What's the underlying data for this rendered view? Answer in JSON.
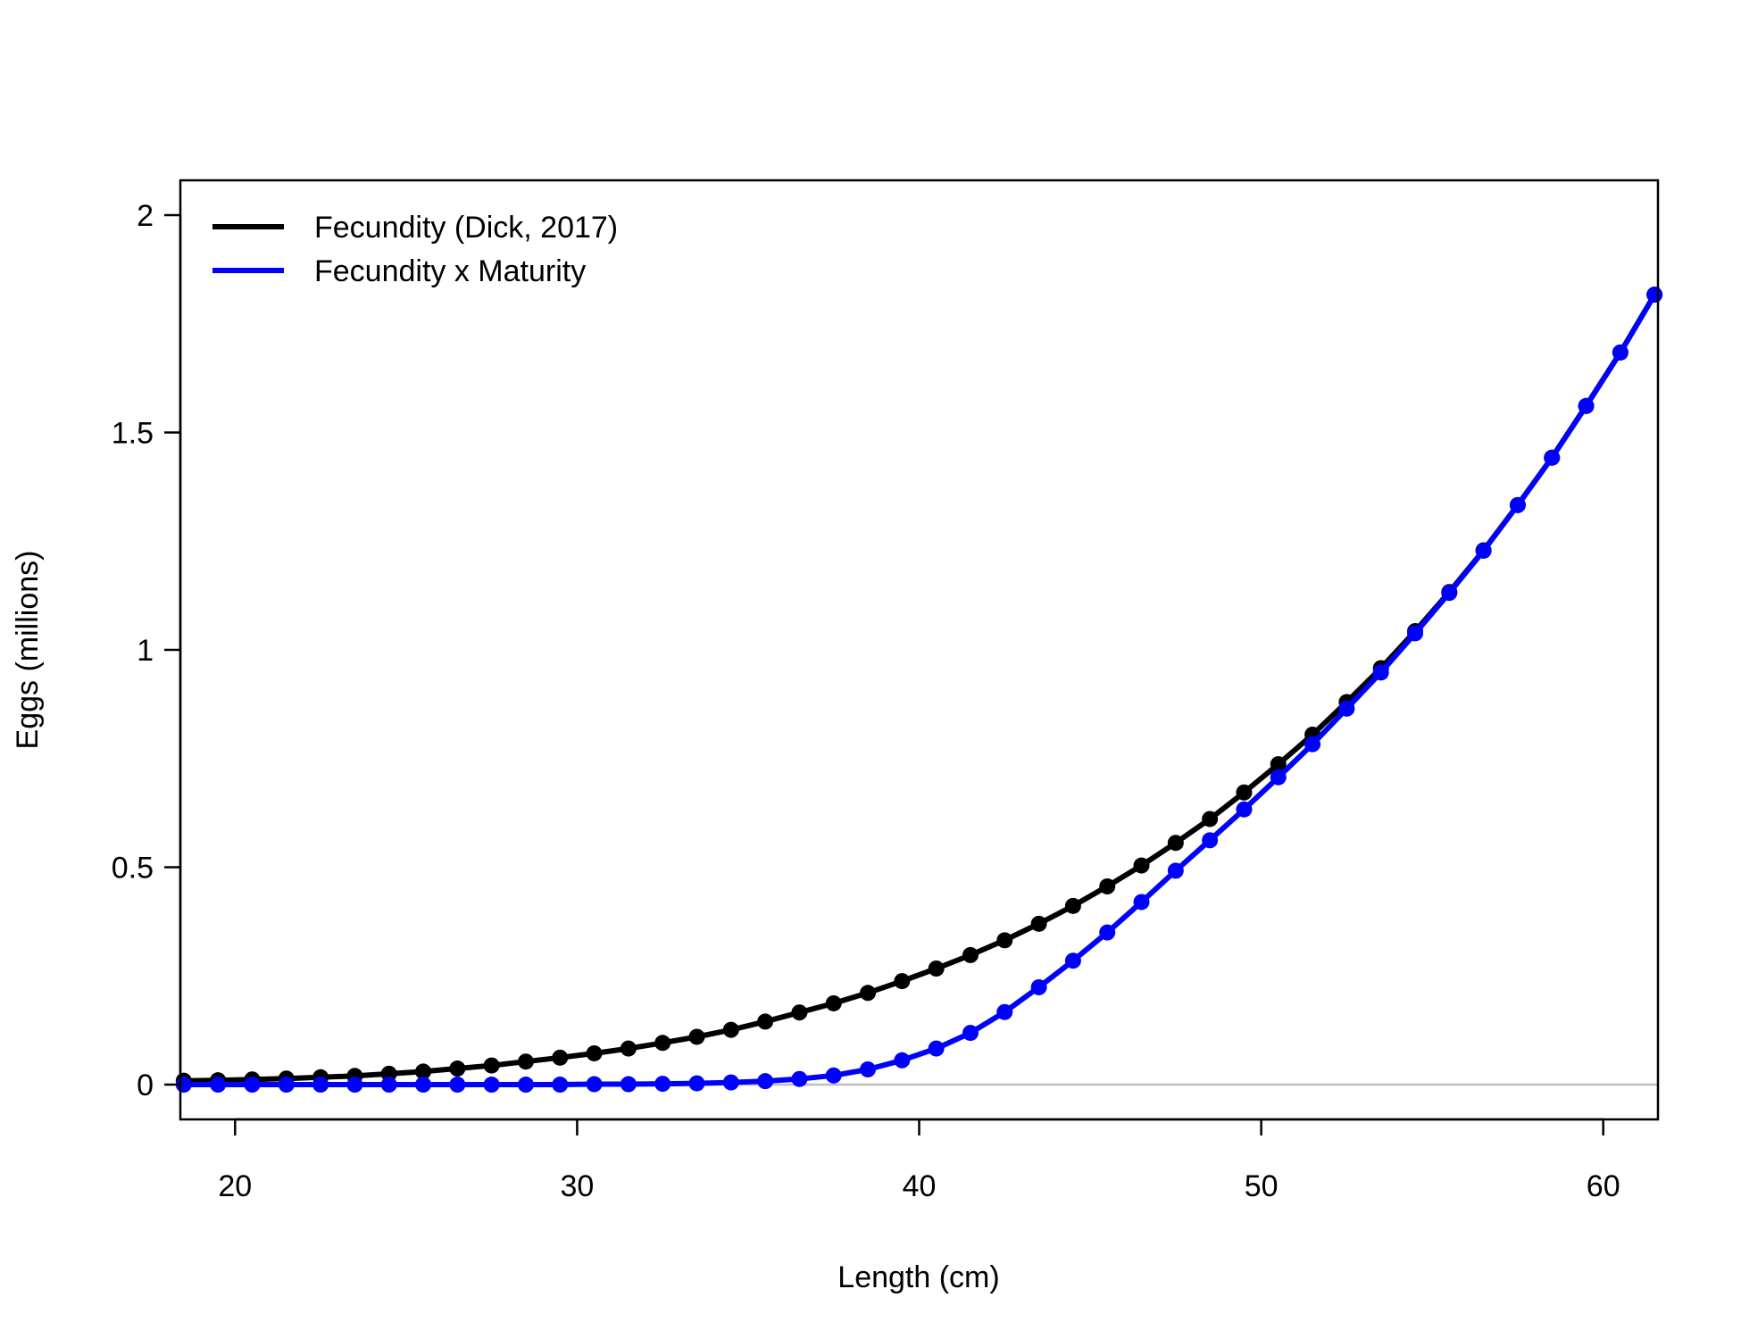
{
  "chart_data": {
    "type": "line",
    "title": "",
    "xlabel": "Length (cm)",
    "ylabel": "Eggs (millions)",
    "xlim": [
      18.4,
      61.6
    ],
    "ylim": [
      -0.08,
      2.08
    ],
    "xticks": [
      20,
      30,
      40,
      50,
      60
    ],
    "xtick_labels": [
      "20",
      "30",
      "40",
      "50",
      "60"
    ],
    "yticks": [
      0,
      0.5,
      1,
      1.5,
      2
    ],
    "ytick_labels": [
      "0",
      "0.5",
      "1",
      "1.5",
      "2"
    ],
    "reference_line": {
      "y": 0,
      "color": "#bebebe"
    },
    "legend_position": "top-left",
    "grid": false,
    "x": [
      18.5,
      19.5,
      20.5,
      21.5,
      22.5,
      23.5,
      24.5,
      25.5,
      26.5,
      27.5,
      28.5,
      29.5,
      30.5,
      31.5,
      32.5,
      33.5,
      34.5,
      35.5,
      36.5,
      37.5,
      38.5,
      39.5,
      40.5,
      41.5,
      42.5,
      43.5,
      44.5,
      45.5,
      46.5,
      47.5,
      48.5,
      49.5,
      50.5,
      51.5,
      52.5,
      53.5,
      54.5,
      55.5,
      56.5,
      57.5,
      58.5,
      59.5,
      60.5,
      61.5
    ],
    "series": [
      {
        "name": "Fecundity (Dick, 2017)",
        "color": "#000000",
        "values": [
          0.009,
          0.01,
          0.012,
          0.014,
          0.017,
          0.02,
          0.025,
          0.03,
          0.037,
          0.044,
          0.053,
          0.062,
          0.072,
          0.083,
          0.096,
          0.11,
          0.126,
          0.145,
          0.166,
          0.187,
          0.211,
          0.238,
          0.267,
          0.298,
          0.332,
          0.37,
          0.411,
          0.456,
          0.504,
          0.556,
          0.611,
          0.672,
          0.737,
          0.805,
          0.88,
          0.958,
          1.043,
          1.133,
          1.229,
          1.333,
          1.442,
          1.561,
          1.684,
          1.817
        ]
      },
      {
        "name": "Fecundity x Maturity",
        "color": "#0000ff",
        "values": [
          0.0,
          0.0,
          0.0,
          0.0,
          0.0,
          0.0,
          0.0,
          0.0,
          0.0,
          0.0,
          0.0,
          0.0,
          0.001,
          0.001,
          0.002,
          0.003,
          0.005,
          0.008,
          0.013,
          0.021,
          0.035,
          0.056,
          0.083,
          0.119,
          0.167,
          0.224,
          0.285,
          0.35,
          0.42,
          0.492,
          0.562,
          0.633,
          0.707,
          0.783,
          0.865,
          0.948,
          1.038,
          1.131,
          1.228,
          1.333,
          1.442,
          1.561,
          1.684,
          1.817
        ]
      }
    ]
  }
}
